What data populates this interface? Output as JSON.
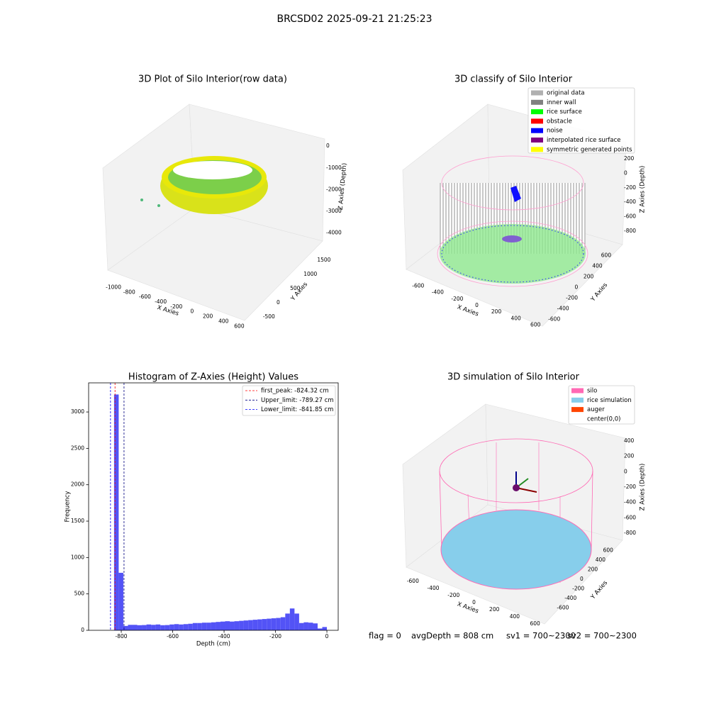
{
  "title": "BRCSD02 2025-09-21 21:25:23",
  "footer": [
    "flag = 0",
    "avgDepth = 808 cm",
    "sv1 = 700~2300",
    "sv2 = 700~2300"
  ],
  "chart_data": [
    {
      "type": "scatter3d",
      "title": "3D Plot of Silo Interior(row data)",
      "xlabel": "X Axies",
      "ylabel": "Y Axies",
      "zlabel": "Z Axies (Depth)",
      "xlim": [
        -1100,
        650
      ],
      "xticks": [
        -1000,
        -800,
        -600,
        -400,
        -200,
        0,
        200,
        400,
        600
      ],
      "ylim": [
        -600,
        1700
      ],
      "yticks": [
        -500,
        0,
        500,
        1000,
        1500
      ],
      "zlim": [
        -4400,
        300
      ],
      "zticks": [
        0,
        -1000,
        -2000,
        -3000,
        -4000
      ]
    },
    {
      "type": "scatter3d",
      "title": "3D classify of Silo Interior",
      "xlabel": "X Axies",
      "ylabel": "Y Axies",
      "zlabel": "Z Axies (Depth)",
      "xlim": [
        -700,
        700
      ],
      "xticks": [
        -600,
        -400,
        -200,
        0,
        200,
        400,
        600
      ],
      "ylim": [
        -700,
        700
      ],
      "yticks": [
        -600,
        -400,
        -200,
        0,
        200,
        400,
        600
      ],
      "zlim": [
        -900,
        300
      ],
      "zticks": [
        200,
        0,
        -200,
        -400,
        -600,
        -800
      ],
      "legend": [
        {
          "name": "original data",
          "color": "#b0b0b0"
        },
        {
          "name": "inner wall",
          "color": "#808080"
        },
        {
          "name": "rice surface",
          "color": "#00ff00"
        },
        {
          "name": "obstacle",
          "color": "#ff0000"
        },
        {
          "name": "noise",
          "color": "#0000ff"
        },
        {
          "name": "interpolated rice surface",
          "color": "#800080"
        },
        {
          "name": "symmetric generated points",
          "color": "#ffff00"
        }
      ]
    },
    {
      "type": "histogram",
      "title": "Histogram of Z-Axies (Height) Values",
      "xlabel": "Depth (cm)",
      "ylabel": "Frequency",
      "color": "#4a4af5",
      "xlim": [
        -927,
        44
      ],
      "xticks": [
        -800,
        -600,
        -400,
        -200,
        0
      ],
      "ylim": [
        0,
        3400
      ],
      "yticks": [
        0,
        500,
        1000,
        1500,
        2000,
        2500,
        3000
      ],
      "bins": [
        -828,
        -810,
        -792,
        -774,
        -756,
        -738,
        -720,
        -702,
        -684,
        -666,
        -648,
        -630,
        -612,
        -594,
        -576,
        -558,
        -540,
        -522,
        -504,
        -486,
        -468,
        -450,
        -432,
        -414,
        -396,
        -378,
        -360,
        -342,
        -324,
        -306,
        -288,
        -270,
        -252,
        -234,
        -216,
        -198,
        -180,
        -162,
        -144,
        -126,
        -108,
        -90,
        -72,
        -54,
        -36,
        -18,
        0
      ],
      "values": [
        3240,
        790,
        60,
        75,
        75,
        70,
        72,
        80,
        75,
        80,
        70,
        72,
        80,
        85,
        80,
        85,
        90,
        100,
        100,
        105,
        105,
        110,
        115,
        120,
        125,
        120,
        125,
        130,
        135,
        140,
        145,
        150,
        155,
        160,
        165,
        170,
        180,
        230,
        300,
        230,
        100,
        110,
        105,
        95,
        25,
        45
      ],
      "lines": [
        {
          "name": "first_peak: -824.32 cm",
          "value": -824.32,
          "color": "#ff0000"
        },
        {
          "name": "Upper_limit: -789.27 cm",
          "value": -789.27,
          "color": "#000080"
        },
        {
          "name": "Lower_limit: -841.85 cm",
          "value": -841.85,
          "color": "#0000ff"
        }
      ]
    },
    {
      "type": "scatter3d",
      "title": "3D simulation of Silo Interior",
      "xlabel": "X Axies",
      "ylabel": "Y Axies",
      "zlabel": "Z Axies (Depth)",
      "xlim": [
        -700,
        700
      ],
      "xticks": [
        -600,
        -400,
        -200,
        0,
        200,
        400,
        600
      ],
      "ylim": [
        -700,
        700
      ],
      "yticks": [
        -600,
        -400,
        -200,
        0,
        200,
        400,
        600
      ],
      "zlim": [
        -900,
        500
      ],
      "zticks": [
        400,
        200,
        0,
        -200,
        -400,
        -600,
        -800
      ],
      "legend": [
        {
          "name": "silo",
          "color": "#ff69b4"
        },
        {
          "name": "rice simulation",
          "color": "#87ceeb"
        },
        {
          "name": "auger",
          "color": "#ff4500"
        },
        {
          "name": "center(0,0)",
          "color": "#ffffff"
        }
      ]
    }
  ]
}
